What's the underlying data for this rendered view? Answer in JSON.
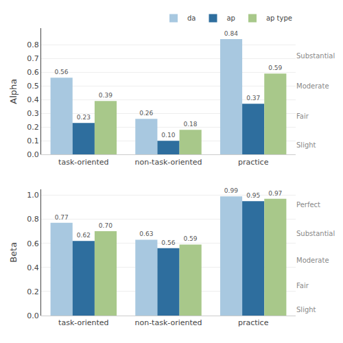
{
  "chart_data": [
    {
      "type": "bar",
      "categories": [
        "task-oriented",
        "non-task-oriented",
        "practice"
      ],
      "series": [
        {
          "name": "da",
          "color": "#a8c8e0",
          "values": [
            0.56,
            0.26,
            0.84
          ],
          "value_labels": [
            "0.56",
            "0.26",
            "0.84"
          ]
        },
        {
          "name": "ap",
          "color": "#2e6e9e",
          "values": [
            0.23,
            0.1,
            0.37
          ],
          "value_labels": [
            "0.23",
            "0.10",
            "0.37"
          ]
        },
        {
          "name": "ap type",
          "color": "#a8c88a",
          "values": [
            0.39,
            0.18,
            0.59
          ],
          "value_labels": [
            "0.39",
            "0.18",
            "0.59"
          ]
        }
      ],
      "ylabel": "Alpha",
      "ylim": [
        0.0,
        0.92
      ],
      "yticks": [
        {
          "value": 0.0,
          "label": "0.0"
        },
        0.1,
        0.2,
        0.3,
        0.4,
        0.5,
        0.6,
        0.7,
        0.8
      ],
      "y2lim": [
        0.0,
        0.92
      ],
      "y2ticks": [
        {
          "value": 0.07,
          "label": "Slight"
        },
        {
          "value": 0.28,
          "label": "Fair"
        },
        {
          "value": 0.5,
          "label": "Moderate"
        },
        {
          "value": 0.72,
          "label": "Substantial"
        }
      ],
      "grid": true,
      "data_labels": true,
      "legend": "upper right"
    },
    {
      "type": "bar",
      "categories": [
        "task-oriented",
        "non-task-oriented",
        "practice"
      ],
      "series": [
        {
          "name": "da",
          "color": "#a8c8e0",
          "values": [
            0.77,
            0.63,
            0.99
          ],
          "value_labels": [
            "0.77",
            "0.63",
            "0.99"
          ]
        },
        {
          "name": "ap",
          "color": "#2e6e9e",
          "values": [
            0.62,
            0.56,
            0.95
          ],
          "value_labels": [
            "0.62",
            "0.56",
            "0.95"
          ]
        },
        {
          "name": "ap type",
          "color": "#a8c88a",
          "values": [
            0.7,
            0.59,
            0.97
          ],
          "value_labels": [
            "0.70",
            "0.59",
            "0.97"
          ]
        }
      ],
      "ylabel": "Beta",
      "ylim": [
        0.0,
        1.05
      ],
      "yticks": [
        {
          "value": 0.0,
          "label": "0.0"
        },
        0.2,
        0.4,
        0.6,
        0.8,
        {
          "value": 1.0,
          "label": "1.0"
        }
      ],
      "y2lim": [
        0.0,
        1.05
      ],
      "y2ticks": [
        {
          "value": 0.05,
          "label": "Slight"
        },
        {
          "value": 0.25,
          "label": "Fair"
        },
        {
          "value": 0.46,
          "label": "Moderate"
        },
        {
          "value": 0.68,
          "label": "Substantial"
        },
        {
          "value": 0.92,
          "label": "Perfect"
        }
      ],
      "grid": true,
      "data_labels": true
    }
  ]
}
